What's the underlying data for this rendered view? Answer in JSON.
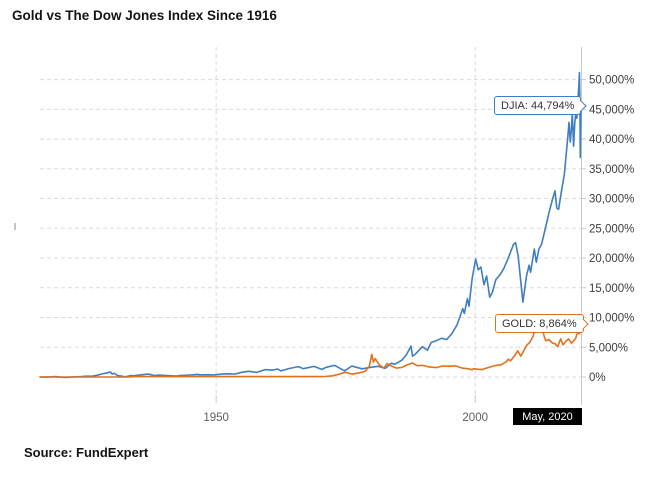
{
  "title": "Gold vs The Dow Jones Index Since 1916",
  "source": "Source: FundExpert",
  "colors": {
    "djia": "#3f7ec0",
    "gold": "#e2711d",
    "grid": "#dadada",
    "axis": "#c9c9c9",
    "y_label": "#3d3d3d",
    "x_label": "#5f5f5f",
    "current_box_bg": "#000000",
    "current_box_text": "#ffffff"
  },
  "chart_data": {
    "type": "line",
    "title": "Gold vs The Dow Jones Index Since 1916",
    "xlabel": "",
    "ylabel": "",
    "grid": "dashed",
    "legend_position": "inline-callouts",
    "x_axis": {
      "range": [
        1916,
        2020.42
      ],
      "ticks": [
        {
          "year": 1950,
          "label": "1950"
        },
        {
          "year": 2000,
          "label": "2000"
        }
      ],
      "current_label": "May, 2020"
    },
    "y_axis": {
      "unit": "%",
      "range": [
        -3500,
        55500
      ],
      "tick_values": [
        0,
        5000,
        10000,
        15000,
        20000,
        25000,
        30000,
        35000,
        40000,
        45000,
        50000
      ],
      "tick_labels": [
        "0%",
        "5,000%",
        "10,000%",
        "15,000%",
        "20,000%",
        "25,000%",
        "30,000%",
        "35,000%",
        "40,000%",
        "45,000%",
        "50,000%"
      ]
    },
    "series": [
      {
        "name": "DJIA",
        "color": "#3f7ec0",
        "final_value": 44794,
        "final_label": "DJIA: 44,794%",
        "points": [
          [
            1916,
            0
          ],
          [
            1917,
            -20
          ],
          [
            1918,
            10
          ],
          [
            1919,
            60
          ],
          [
            1920,
            -40
          ],
          [
            1921,
            -70
          ],
          [
            1922,
            -20
          ],
          [
            1924,
            60
          ],
          [
            1925,
            140
          ],
          [
            1926,
            120
          ],
          [
            1927,
            280
          ],
          [
            1928,
            520
          ],
          [
            1929.0,
            700
          ],
          [
            1929.6,
            860
          ],
          [
            1929.9,
            480
          ],
          [
            1930.3,
            620
          ],
          [
            1931,
            230
          ],
          [
            1932.5,
            30
          ],
          [
            1933.5,
            230
          ],
          [
            1934,
            200
          ],
          [
            1935,
            300
          ],
          [
            1936.8,
            480
          ],
          [
            1937.2,
            440
          ],
          [
            1938.2,
            230
          ],
          [
            1938.8,
            320
          ],
          [
            1939.7,
            280
          ],
          [
            1940.4,
            250
          ],
          [
            1942.3,
            160
          ],
          [
            1943,
            260
          ],
          [
            1945,
            340
          ],
          [
            1946.4,
            440
          ],
          [
            1947,
            350
          ],
          [
            1948.5,
            380
          ],
          [
            1949.4,
            330
          ],
          [
            1950,
            400
          ],
          [
            1951,
            470
          ],
          [
            1952,
            530
          ],
          [
            1953.7,
            500
          ],
          [
            1955,
            800
          ],
          [
            1956.3,
            950
          ],
          [
            1957.8,
            780
          ],
          [
            1959.5,
            1250
          ],
          [
            1960.8,
            1150
          ],
          [
            1961.9,
            1350
          ],
          [
            1962.5,
            1020
          ],
          [
            1964,
            1420
          ],
          [
            1965.9,
            1750
          ],
          [
            1966.8,
            1400
          ],
          [
            1968.9,
            1780
          ],
          [
            1970.4,
            1280
          ],
          [
            1971.3,
            1650
          ],
          [
            1972.9,
            1950
          ],
          [
            1973.8,
            1500
          ],
          [
            1974.8,
            1050
          ],
          [
            1976.2,
            1850
          ],
          [
            1977,
            1650
          ],
          [
            1978.2,
            1380
          ],
          [
            1979,
            1500
          ],
          [
            1980,
            1650
          ],
          [
            1981.3,
            1800
          ],
          [
            1982.6,
            1450
          ],
          [
            1983.8,
            2300
          ],
          [
            1984.5,
            2150
          ],
          [
            1985.8,
            2800
          ],
          [
            1986.7,
            3700
          ],
          [
            1987.6,
            5200
          ],
          [
            1987.9,
            3500
          ],
          [
            1988.5,
            3900
          ],
          [
            1989.8,
            5100
          ],
          [
            1990.8,
            4500
          ],
          [
            1991.5,
            5800
          ],
          [
            1992.5,
            6100
          ],
          [
            1993.5,
            6500
          ],
          [
            1994.5,
            6300
          ],
          [
            1995.5,
            7300
          ],
          [
            1996.5,
            8800
          ],
          [
            1997.6,
            11500
          ],
          [
            1997.9,
            10700
          ],
          [
            1998.5,
            13200
          ],
          [
            1998.8,
            11900
          ],
          [
            1999.4,
            16500
          ],
          [
            1999.8,
            18500
          ],
          [
            2000.1,
            19800
          ],
          [
            2000.6,
            18000
          ],
          [
            2001.1,
            18500
          ],
          [
            2001.7,
            15500
          ],
          [
            2002.2,
            17000
          ],
          [
            2002.8,
            13400
          ],
          [
            2003.3,
            14200
          ],
          [
            2004,
            16400
          ],
          [
            2004.8,
            17200
          ],
          [
            2005.5,
            18200
          ],
          [
            2006.3,
            19800
          ],
          [
            2007.4,
            22300
          ],
          [
            2007.8,
            22600
          ],
          [
            2008.3,
            20300
          ],
          [
            2008.75,
            16500
          ],
          [
            2009.2,
            12600
          ],
          [
            2009.9,
            17000
          ],
          [
            2010.4,
            18800
          ],
          [
            2010.7,
            17600
          ],
          [
            2011.4,
            21500
          ],
          [
            2011.8,
            19300
          ],
          [
            2012.3,
            21500
          ],
          [
            2012.8,
            22300
          ],
          [
            2013.5,
            24800
          ],
          [
            2014.2,
            27500
          ],
          [
            2014.9,
            29800
          ],
          [
            2015.4,
            31300
          ],
          [
            2015.75,
            28400
          ],
          [
            2016.1,
            28200
          ],
          [
            2016.7,
            31500
          ],
          [
            2017.2,
            34000
          ],
          [
            2017.9,
            40500
          ],
          [
            2018.1,
            42800
          ],
          [
            2018.35,
            39500
          ],
          [
            2018.55,
            41500
          ],
          [
            2018.75,
            44300
          ],
          [
            2019.0,
            38800
          ],
          [
            2019.2,
            42500
          ],
          [
            2019.45,
            44800
          ],
          [
            2019.6,
            43500
          ],
          [
            2019.8,
            46300
          ],
          [
            2020.0,
            48800
          ],
          [
            2020.12,
            51200
          ],
          [
            2020.2,
            46500
          ],
          [
            2020.28,
            36900
          ],
          [
            2020.35,
            41000
          ],
          [
            2020.42,
            44794
          ]
        ]
      },
      {
        "name": "GOLD",
        "color": "#e2711d",
        "final_value": 8864,
        "final_label": "GOLD: 8,864%",
        "points": [
          [
            1916,
            0
          ],
          [
            1933,
            0
          ],
          [
            1934.2,
            69
          ],
          [
            1967,
            69
          ],
          [
            1969,
            75
          ],
          [
            1971,
            90
          ],
          [
            1972.5,
            200
          ],
          [
            1973.5,
            420
          ],
          [
            1974.9,
            790
          ],
          [
            1976.3,
            480
          ],
          [
            1977.5,
            650
          ],
          [
            1978.8,
            1000
          ],
          [
            1979.6,
            1900
          ],
          [
            1980.05,
            3800
          ],
          [
            1980.35,
            2500
          ],
          [
            1980.7,
            3100
          ],
          [
            1981.5,
            2000
          ],
          [
            1982.4,
            1500
          ],
          [
            1983.0,
            2250
          ],
          [
            1983.7,
            1900
          ],
          [
            1984.8,
            1500
          ],
          [
            1985.8,
            1600
          ],
          [
            1987.0,
            2100
          ],
          [
            1987.9,
            2350
          ],
          [
            1988.8,
            1900
          ],
          [
            1989.9,
            1950
          ],
          [
            1991,
            1700
          ],
          [
            1992.5,
            1580
          ],
          [
            1993.7,
            1850
          ],
          [
            1995,
            1810
          ],
          [
            1996.2,
            1870
          ],
          [
            1997.5,
            1500
          ],
          [
            1998.5,
            1400
          ],
          [
            1999.4,
            1230
          ],
          [
            1999.7,
            1400
          ],
          [
            2000.5,
            1300
          ],
          [
            2001.3,
            1250
          ],
          [
            2002,
            1450
          ],
          [
            2003,
            1700
          ],
          [
            2004,
            1950
          ],
          [
            2005,
            2050
          ],
          [
            2005.9,
            2500
          ],
          [
            2006.4,
            3000
          ],
          [
            2006.8,
            2700
          ],
          [
            2007.8,
            3800
          ],
          [
            2008.2,
            4400
          ],
          [
            2008.8,
            3500
          ],
          [
            2009.3,
            4300
          ],
          [
            2009.9,
            5300
          ],
          [
            2010.6,
            5900
          ],
          [
            2011.2,
            6900
          ],
          [
            2011.7,
            8600
          ],
          [
            2012.0,
            7900
          ],
          [
            2012.4,
            8100
          ],
          [
            2012.9,
            8200
          ],
          [
            2013.4,
            6600
          ],
          [
            2013.6,
            6100
          ],
          [
            2014.2,
            6300
          ],
          [
            2014.9,
            5700
          ],
          [
            2015.4,
            5600
          ],
          [
            2015.9,
            5100
          ],
          [
            2016.5,
            6400
          ],
          [
            2016.95,
            5400
          ],
          [
            2017.5,
            6000
          ],
          [
            2018.0,
            6400
          ],
          [
            2018.6,
            5700
          ],
          [
            2018.9,
            6000
          ],
          [
            2019.4,
            6500
          ],
          [
            2019.6,
            7200
          ],
          [
            2019.9,
            7300
          ],
          [
            2020.05,
            7600
          ],
          [
            2020.15,
            7300
          ],
          [
            2020.25,
            8000
          ],
          [
            2020.42,
            8864
          ]
        ]
      }
    ]
  }
}
